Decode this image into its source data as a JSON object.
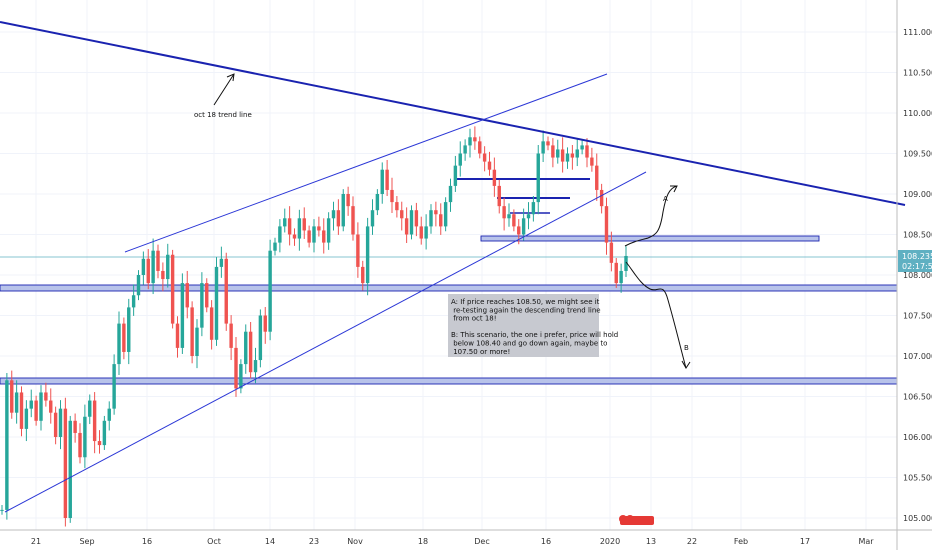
{
  "chart_data": {
    "type": "candlestick",
    "price_axis": {
      "ticks": [
        "111.000",
        "110.500",
        "110.000",
        "109.500",
        "109.000",
        "108.500",
        "108.000",
        "107.500",
        "107.000",
        "106.500",
        "106.000",
        "105.500",
        "105.000"
      ],
      "range": [
        104.95,
        111.25
      ]
    },
    "time_axis": {
      "ticks": [
        "21",
        "Sep",
        "16",
        "Oct",
        "14",
        "23",
        "Nov",
        "18",
        "Dec",
        "16",
        "2020",
        "13",
        "22",
        "Feb",
        "17",
        "Mar"
      ]
    },
    "last_price": "108.235",
    "countdown": "02:17:51",
    "colors": {
      "up": "#26a69a",
      "down": "#ef5350",
      "trendline": "#1a23b0",
      "zone": "#7f97d6",
      "last": "#5fb0c2"
    },
    "series": [
      {
        "values": [
          105.1,
          106.7,
          106.3,
          106.55,
          106.1,
          106.35,
          106.45,
          106.2,
          106.55,
          106.45,
          106.3,
          106.0,
          106.35,
          105.0,
          106.2,
          106.05,
          105.75,
          106.25,
          106.45,
          105.95,
          105.9,
          106.2,
          106.35,
          106.9,
          107.4,
          107.05,
          107.6,
          107.75,
          108.0,
          108.2,
          107.9,
          108.3,
          108.05,
          107.95,
          108.25,
          107.4,
          107.1,
          107.9,
          107.6,
          107.0,
          107.35,
          107.9,
          107.6,
          107.2,
          108.1,
          108.2,
          107.4,
          107.1,
          106.6,
          106.9,
          107.3,
          106.8,
          106.95,
          107.5,
          107.3,
          108.3,
          108.4,
          108.6,
          108.7,
          108.5,
          108.45,
          108.7,
          108.55,
          108.4,
          108.6,
          108.55,
          108.4,
          108.7,
          108.8,
          108.6,
          109.0,
          108.85,
          108.5,
          108.1,
          107.9,
          108.6,
          108.8,
          109.0,
          109.3,
          109.05,
          108.9,
          108.8,
          108.7,
          108.5,
          108.8,
          108.6,
          108.45,
          108.6,
          108.8,
          108.75,
          108.6,
          108.9,
          109.1,
          109.35,
          109.5,
          109.6,
          109.7,
          109.65,
          109.5,
          109.4,
          109.3,
          109.1,
          108.85,
          108.7,
          108.75,
          108.6,
          108.5,
          108.7,
          108.75,
          108.9,
          109.5,
          109.65,
          109.6,
          109.45,
          109.55,
          109.4,
          109.5,
          109.45,
          109.55,
          109.6,
          109.45,
          109.35,
          109.05,
          108.85,
          108.4,
          108.15,
          107.9,
          108.05,
          108.235
        ]
      }
    ],
    "annotations": [
      {
        "text": "oct 18 trend line"
      },
      {
        "text": "A"
      },
      {
        "text": "B"
      },
      {
        "lines": [
          "A: If price reaches 108.50, we might see it",
          " re-testing again the descending trend line",
          " from oct 18!",
          "",
          "B: This scenario, the one i prefer, price will hold",
          " below 108.40 and go down again, maybe to",
          " 107.50 or more!"
        ]
      }
    ]
  }
}
